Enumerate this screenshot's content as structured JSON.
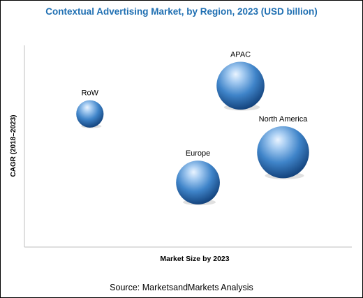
{
  "chart_data": {
    "type": "scatter",
    "title": "Contextual Advertising Market, by Region, 2023 (USD billion)",
    "xlabel": "Market Size by 2023",
    "ylabel": "CAGR (2018–2023)",
    "xlim": [
      0,
      10
    ],
    "ylim": [
      0,
      10
    ],
    "grid": false,
    "series": [
      {
        "name": "RoW",
        "x": 2.0,
        "y": 6.6,
        "size": 4.0
      },
      {
        "name": "APAC",
        "x": 6.6,
        "y": 8.0,
        "size": 7.0
      },
      {
        "name": "North America",
        "x": 7.9,
        "y": 4.7,
        "size": 7.6
      },
      {
        "name": "Europe",
        "x": 5.3,
        "y": 3.2,
        "size": 6.4
      }
    ],
    "bubble_color": "#3f84c9"
  },
  "source": "Source: MarketsandMarkets Analysis"
}
